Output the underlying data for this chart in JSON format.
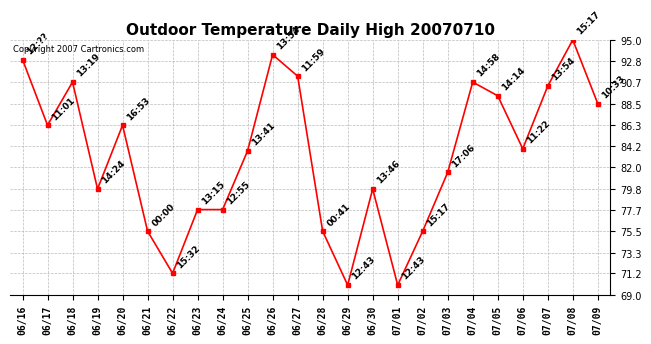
{
  "title": "Outdoor Temperature Daily High 20070710",
  "copyright": "Copyright 2007 Cartronics.com",
  "x_labels": [
    "06/16",
    "06/17",
    "06/18",
    "06/19",
    "06/20",
    "06/21",
    "06/22",
    "06/23",
    "06/24",
    "06/25",
    "06/26",
    "06/27",
    "06/28",
    "06/29",
    "06/30",
    "07/01",
    "07/02",
    "07/03",
    "07/04",
    "07/05",
    "07/06",
    "07/07",
    "07/08",
    "07/09"
  ],
  "y_values": [
    93.0,
    86.3,
    90.7,
    79.8,
    86.3,
    75.5,
    71.2,
    77.7,
    77.7,
    83.7,
    93.5,
    91.3,
    75.5,
    70.0,
    79.8,
    70.0,
    75.5,
    81.5,
    90.7,
    89.3,
    83.9,
    90.3,
    95.0,
    88.5
  ],
  "point_labels": [
    "12:??",
    "11:01",
    "13:19",
    "14:24",
    "16:53",
    "00:00",
    "15:32",
    "13:15",
    "12:55",
    "13:41",
    "13:54",
    "11:59",
    "00:41",
    "12:43",
    "13:46",
    "12:43",
    "15:17",
    "17:06",
    "14:58",
    "14:14",
    "11:22",
    "13:54",
    "15:17",
    "10:33"
  ],
  "ylim": [
    69.0,
    95.0
  ],
  "yticks": [
    69.0,
    71.2,
    73.3,
    75.5,
    77.7,
    79.8,
    82.0,
    84.2,
    86.3,
    88.5,
    90.7,
    92.8,
    95.0
  ],
  "line_color": "red",
  "marker_color": "red",
  "bg_color": "white",
  "grid_color": "#bbbbbb",
  "title_fontsize": 11,
  "label_fontsize": 7,
  "point_label_fontsize": 6.5
}
